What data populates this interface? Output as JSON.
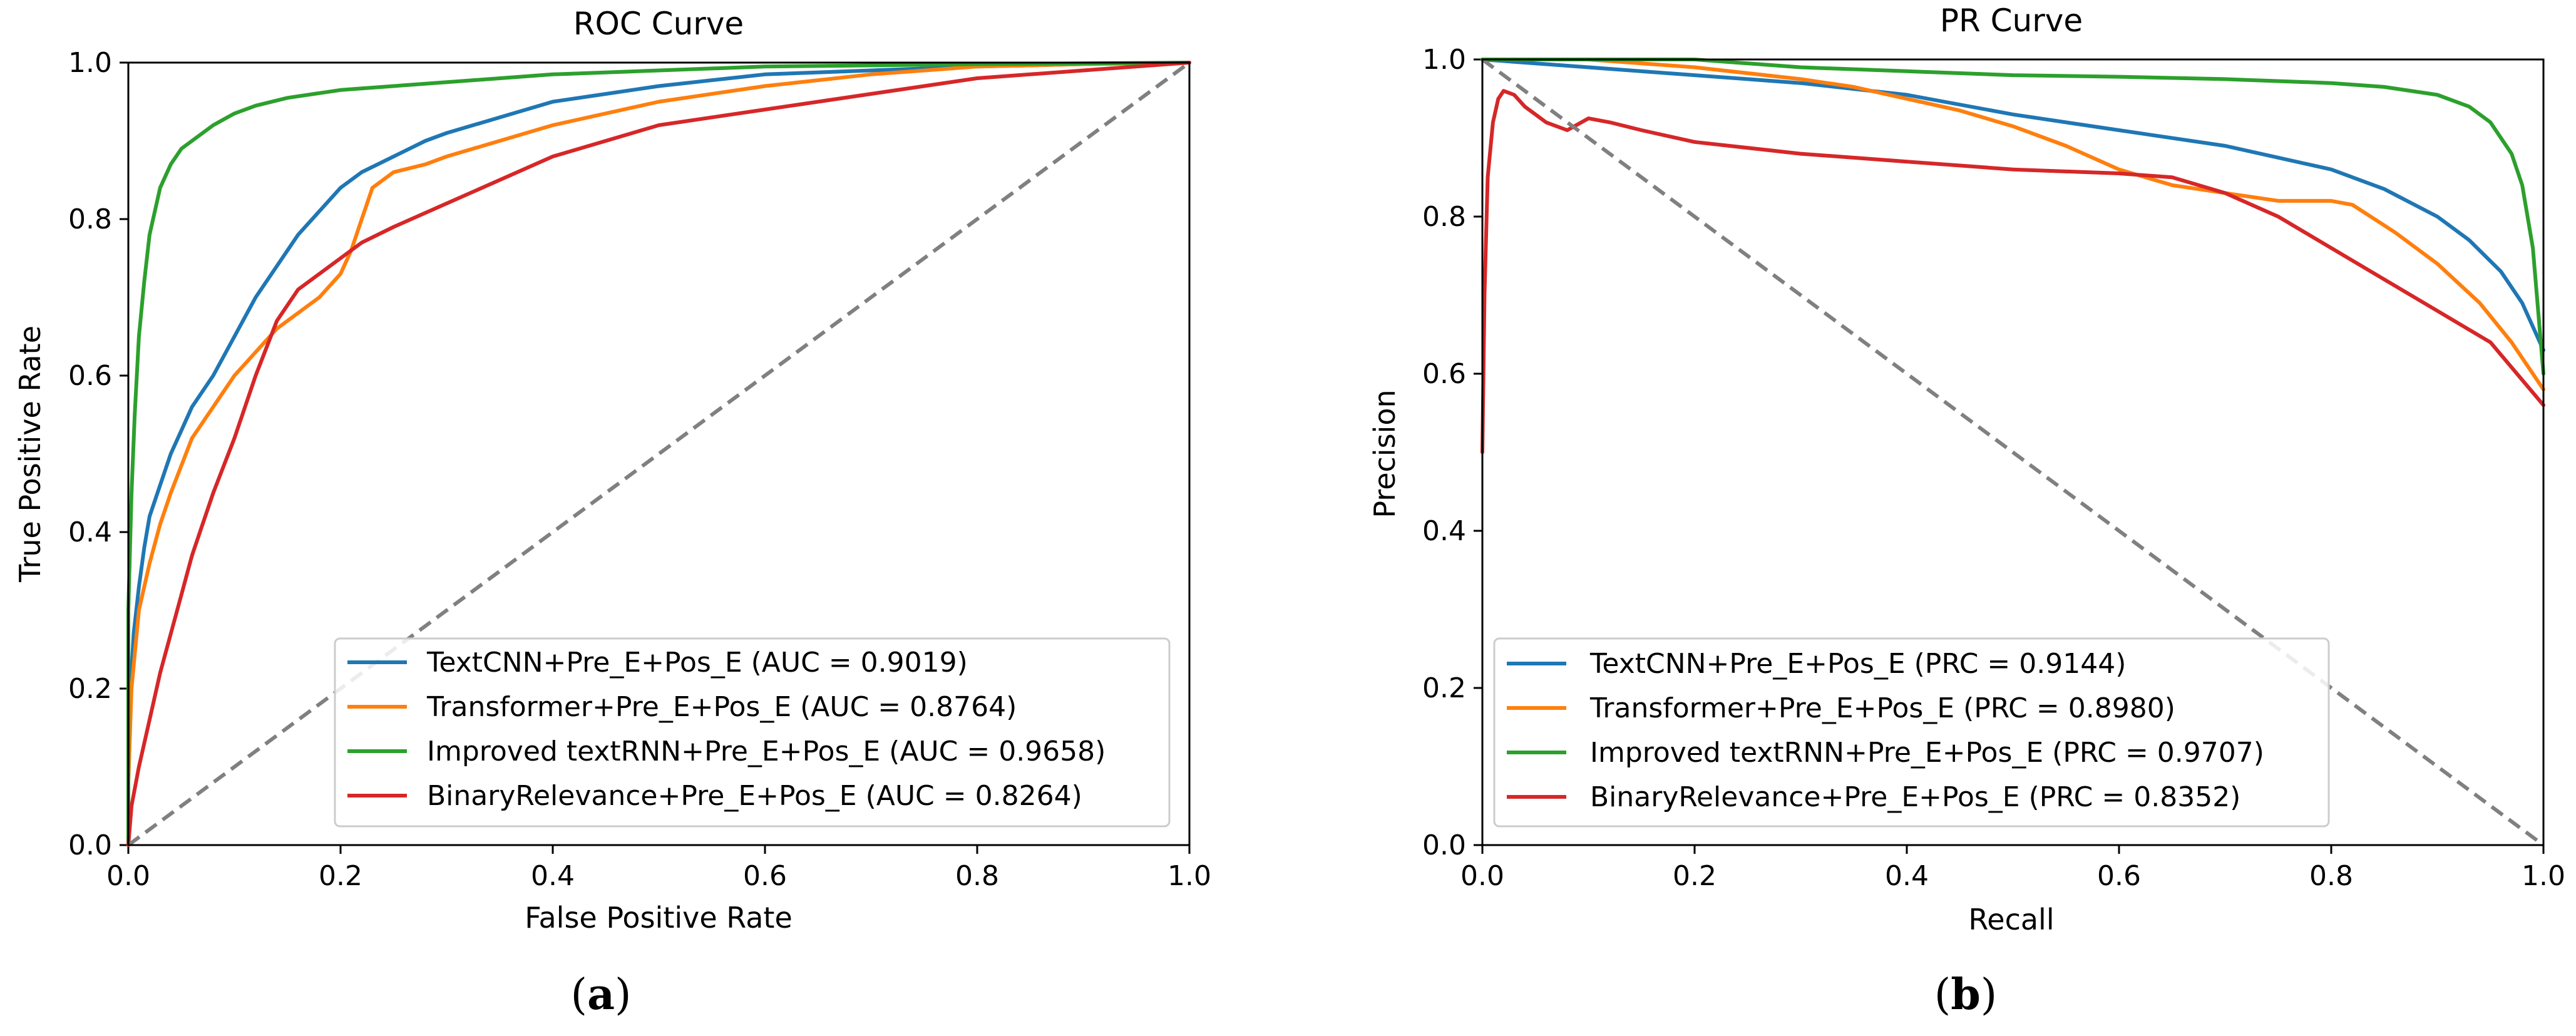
{
  "colors": {
    "blue": "#1f77b4",
    "orange": "#ff7f0e",
    "green": "#2ca02c",
    "red": "#d62728",
    "diagonal": "#808080",
    "axis": "#000000"
  },
  "chart_data": [
    {
      "type": "line",
      "panel_label": "(a)",
      "panel_letter": "a",
      "title": "ROC Curve",
      "xlabel": "False Positive Rate",
      "ylabel": "True Positive Rate",
      "xlim": [
        0,
        1
      ],
      "ylim": [
        0,
        1
      ],
      "xticks": [
        "0.0",
        "0.2",
        "0.4",
        "0.6",
        "0.8",
        "1.0"
      ],
      "yticks": [
        "0.0",
        "0.2",
        "0.4",
        "0.6",
        "0.8",
        "1.0"
      ],
      "legend_position": "lower-right",
      "reference_line": {
        "style": "dashed",
        "points": [
          [
            0,
            0
          ],
          [
            1,
            1
          ]
        ]
      },
      "series": [
        {
          "name": "TextCNN+Pre_E+Pos_E (AUC = 0.9019)",
          "color_key": "blue",
          "points": [
            [
              0,
              0
            ],
            [
              0,
              0.1
            ],
            [
              0.002,
              0.2
            ],
            [
              0.005,
              0.27
            ],
            [
              0.01,
              0.33
            ],
            [
              0.015,
              0.38
            ],
            [
              0.02,
              0.42
            ],
            [
              0.03,
              0.46
            ],
            [
              0.04,
              0.5
            ],
            [
              0.05,
              0.53
            ],
            [
              0.06,
              0.56
            ],
            [
              0.08,
              0.6
            ],
            [
              0.1,
              0.65
            ],
            [
              0.12,
              0.7
            ],
            [
              0.14,
              0.74
            ],
            [
              0.16,
              0.78
            ],
            [
              0.18,
              0.81
            ],
            [
              0.2,
              0.84
            ],
            [
              0.22,
              0.86
            ],
            [
              0.25,
              0.88
            ],
            [
              0.28,
              0.9
            ],
            [
              0.3,
              0.91
            ],
            [
              0.35,
              0.93
            ],
            [
              0.4,
              0.95
            ],
            [
              0.45,
              0.96
            ],
            [
              0.5,
              0.97
            ],
            [
              0.6,
              0.985
            ],
            [
              0.7,
              0.99
            ],
            [
              0.8,
              0.995
            ],
            [
              0.9,
              0.998
            ],
            [
              1,
              1
            ]
          ]
        },
        {
          "name": "Transformer+Pre_E+Pos_E (AUC = 0.8764)",
          "color_key": "orange",
          "points": [
            [
              0,
              0
            ],
            [
              0,
              0.08
            ],
            [
              0.003,
              0.2
            ],
            [
              0.01,
              0.3
            ],
            [
              0.02,
              0.36
            ],
            [
              0.03,
              0.41
            ],
            [
              0.04,
              0.45
            ],
            [
              0.06,
              0.52
            ],
            [
              0.08,
              0.56
            ],
            [
              0.1,
              0.6
            ],
            [
              0.12,
              0.63
            ],
            [
              0.14,
              0.66
            ],
            [
              0.16,
              0.68
            ],
            [
              0.18,
              0.7
            ],
            [
              0.2,
              0.73
            ],
            [
              0.21,
              0.76
            ],
            [
              0.22,
              0.8
            ],
            [
              0.23,
              0.84
            ],
            [
              0.25,
              0.86
            ],
            [
              0.28,
              0.87
            ],
            [
              0.3,
              0.88
            ],
            [
              0.35,
              0.9
            ],
            [
              0.4,
              0.92
            ],
            [
              0.5,
              0.95
            ],
            [
              0.6,
              0.97
            ],
            [
              0.7,
              0.985
            ],
            [
              0.8,
              0.995
            ],
            [
              0.9,
              0.998
            ],
            [
              1,
              1
            ]
          ]
        },
        {
          "name": "Improved textRNN+Pre_E+Pos_E (AUC = 0.9658)",
          "color_key": "green",
          "points": [
            [
              0,
              0
            ],
            [
              0,
              0.3
            ],
            [
              0.003,
              0.45
            ],
            [
              0.006,
              0.55
            ],
            [
              0.01,
              0.65
            ],
            [
              0.015,
              0.72
            ],
            [
              0.02,
              0.78
            ],
            [
              0.03,
              0.84
            ],
            [
              0.04,
              0.87
            ],
            [
              0.05,
              0.89
            ],
            [
              0.06,
              0.9
            ],
            [
              0.08,
              0.92
            ],
            [
              0.1,
              0.935
            ],
            [
              0.12,
              0.945
            ],
            [
              0.15,
              0.955
            ],
            [
              0.2,
              0.965
            ],
            [
              0.25,
              0.97
            ],
            [
              0.3,
              0.975
            ],
            [
              0.4,
              0.985
            ],
            [
              0.5,
              0.99
            ],
            [
              0.6,
              0.995
            ],
            [
              0.8,
              0.998
            ],
            [
              1,
              1
            ]
          ]
        },
        {
          "name": "BinaryRelevance+Pre_E+Pos_E (AUC = 0.8264)",
          "color_key": "red",
          "points": [
            [
              0,
              0
            ],
            [
              0.003,
              0.05
            ],
            [
              0.01,
              0.1
            ],
            [
              0.02,
              0.16
            ],
            [
              0.03,
              0.22
            ],
            [
              0.04,
              0.27
            ],
            [
              0.05,
              0.32
            ],
            [
              0.06,
              0.37
            ],
            [
              0.07,
              0.41
            ],
            [
              0.08,
              0.45
            ],
            [
              0.1,
              0.52
            ],
            [
              0.12,
              0.6
            ],
            [
              0.14,
              0.67
            ],
            [
              0.16,
              0.71
            ],
            [
              0.18,
              0.73
            ],
            [
              0.2,
              0.75
            ],
            [
              0.22,
              0.77
            ],
            [
              0.25,
              0.79
            ],
            [
              0.3,
              0.82
            ],
            [
              0.35,
              0.85
            ],
            [
              0.4,
              0.88
            ],
            [
              0.45,
              0.9
            ],
            [
              0.5,
              0.92
            ],
            [
              0.6,
              0.94
            ],
            [
              0.7,
              0.96
            ],
            [
              0.8,
              0.98
            ],
            [
              0.9,
              0.99
            ],
            [
              1,
              1
            ]
          ]
        }
      ]
    },
    {
      "type": "line",
      "panel_label": "(b)",
      "panel_letter": "b",
      "title": "PR Curve",
      "xlabel": "Recall",
      "ylabel": "Precision",
      "xlim": [
        0,
        1
      ],
      "ylim": [
        0,
        1
      ],
      "xticks": [
        "0.0",
        "0.2",
        "0.4",
        "0.6",
        "0.8",
        "1.0"
      ],
      "yticks": [
        "0.0",
        "0.2",
        "0.4",
        "0.6",
        "0.8",
        "1.0"
      ],
      "legend_position": "lower-left",
      "reference_line": {
        "style": "dashed",
        "points": [
          [
            0,
            1
          ],
          [
            1,
            0
          ]
        ]
      },
      "series": [
        {
          "name": "TextCNN+Pre_E+Pos_E (PRC = 0.9144)",
          "color_key": "blue",
          "points": [
            [
              0,
              1
            ],
            [
              0.05,
              0.995
            ],
            [
              0.1,
              0.99
            ],
            [
              0.2,
              0.98
            ],
            [
              0.3,
              0.97
            ],
            [
              0.4,
              0.955
            ],
            [
              0.5,
              0.93
            ],
            [
              0.6,
              0.91
            ],
            [
              0.7,
              0.89
            ],
            [
              0.8,
              0.86
            ],
            [
              0.85,
              0.835
            ],
            [
              0.9,
              0.8
            ],
            [
              0.93,
              0.77
            ],
            [
              0.96,
              0.73
            ],
            [
              0.98,
              0.69
            ],
            [
              1,
              0.63
            ]
          ]
        },
        {
          "name": "Transformer+Pre_E+Pos_E (PRC = 0.8980)",
          "color_key": "orange",
          "points": [
            [
              0,
              1
            ],
            [
              0.1,
              1
            ],
            [
              0.2,
              0.99
            ],
            [
              0.3,
              0.975
            ],
            [
              0.35,
              0.965
            ],
            [
              0.4,
              0.95
            ],
            [
              0.45,
              0.935
            ],
            [
              0.5,
              0.915
            ],
            [
              0.55,
              0.89
            ],
            [
              0.6,
              0.86
            ],
            [
              0.65,
              0.84
            ],
            [
              0.7,
              0.83
            ],
            [
              0.75,
              0.82
            ],
            [
              0.8,
              0.82
            ],
            [
              0.82,
              0.815
            ],
            [
              0.86,
              0.78
            ],
            [
              0.9,
              0.74
            ],
            [
              0.94,
              0.69
            ],
            [
              0.97,
              0.64
            ],
            [
              1,
              0.58
            ]
          ]
        },
        {
          "name": "Improved textRNN+Pre_E+Pos_E (PRC = 0.9707)",
          "color_key": "green",
          "points": [
            [
              0,
              1
            ],
            [
              0.2,
              1
            ],
            [
              0.3,
              0.99
            ],
            [
              0.4,
              0.985
            ],
            [
              0.5,
              0.98
            ],
            [
              0.6,
              0.978
            ],
            [
              0.7,
              0.975
            ],
            [
              0.8,
              0.97
            ],
            [
              0.85,
              0.965
            ],
            [
              0.9,
              0.955
            ],
            [
              0.93,
              0.94
            ],
            [
              0.95,
              0.92
            ],
            [
              0.97,
              0.88
            ],
            [
              0.98,
              0.84
            ],
            [
              0.99,
              0.76
            ],
            [
              1,
              0.6
            ]
          ]
        },
        {
          "name": "BinaryRelevance+Pre_E+Pos_E (PRC = 0.8352)",
          "color_key": "red",
          "points": [
            [
              0,
              0.5
            ],
            [
              0.002,
              0.7
            ],
            [
              0.005,
              0.85
            ],
            [
              0.01,
              0.92
            ],
            [
              0.015,
              0.95
            ],
            [
              0.02,
              0.96
            ],
            [
              0.03,
              0.955
            ],
            [
              0.04,
              0.94
            ],
            [
              0.05,
              0.93
            ],
            [
              0.06,
              0.92
            ],
            [
              0.08,
              0.91
            ],
            [
              0.1,
              0.925
            ],
            [
              0.12,
              0.92
            ],
            [
              0.15,
              0.91
            ],
            [
              0.2,
              0.895
            ],
            [
              0.3,
              0.88
            ],
            [
              0.4,
              0.87
            ],
            [
              0.5,
              0.86
            ],
            [
              0.6,
              0.855
            ],
            [
              0.65,
              0.85
            ],
            [
              0.7,
              0.83
            ],
            [
              0.75,
              0.8
            ],
            [
              0.8,
              0.76
            ],
            [
              0.85,
              0.72
            ],
            [
              0.9,
              0.68
            ],
            [
              0.95,
              0.64
            ],
            [
              1,
              0.56
            ]
          ]
        }
      ]
    }
  ]
}
